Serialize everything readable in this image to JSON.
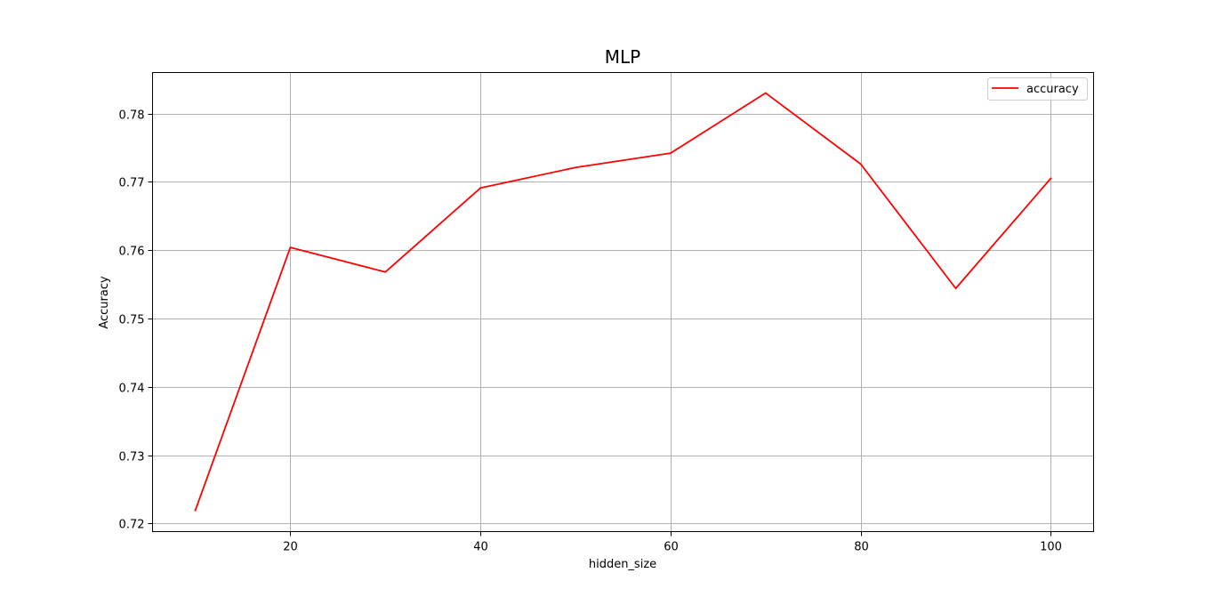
{
  "chart_data": {
    "type": "line",
    "title": "MLP",
    "xlabel": "hidden_size",
    "ylabel": "Accuracy",
    "x": [
      10,
      20,
      30,
      40,
      50,
      60,
      70,
      80,
      90,
      100
    ],
    "series": [
      {
        "name": "accuracy",
        "color": "#ff0000",
        "values": [
          0.7219,
          0.7604,
          0.7568,
          0.7691,
          0.7721,
          0.7742,
          0.783,
          0.7726,
          0.7544,
          0.7705
        ]
      }
    ],
    "xlim": [
      5.5,
      104.5
    ],
    "ylim": [
      0.7188,
      0.786
    ],
    "xticks": [
      20,
      40,
      60,
      80,
      100
    ],
    "xtick_labels": [
      "20",
      "40",
      "60",
      "80",
      "100"
    ],
    "yticks": [
      0.72,
      0.73,
      0.74,
      0.75,
      0.76,
      0.77,
      0.78
    ],
    "ytick_labels": [
      "0.72",
      "0.73",
      "0.74",
      "0.75",
      "0.76",
      "0.77",
      "0.78"
    ],
    "grid": true,
    "legend_position": "top-right"
  }
}
